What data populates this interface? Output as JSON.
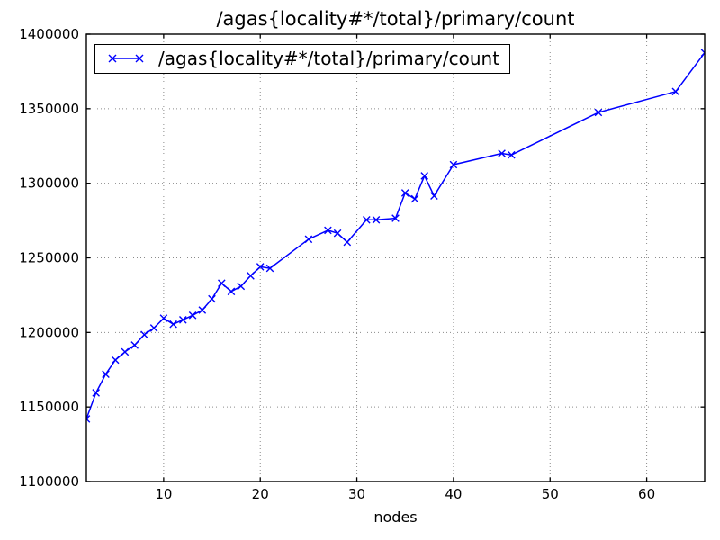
{
  "chart_data": {
    "type": "line",
    "title": "/agas{locality#*/total}/primary/count",
    "xlabel": "nodes",
    "ylabel": "",
    "grid": true,
    "grid_style": "dotted",
    "grid_color": "#8a8a8a",
    "legend_position": "upper left",
    "xlim": [
      2,
      66
    ],
    "ylim": [
      1100000,
      1400000
    ],
    "xticks": [
      10,
      20,
      30,
      40,
      50,
      60
    ],
    "yticks": [
      1100000,
      1150000,
      1200000,
      1250000,
      1300000,
      1350000,
      1400000
    ],
    "series": [
      {
        "name": "/agas{locality#*/total}/primary/count",
        "color": "#0000ff",
        "marker": "x",
        "x": [
          2,
          3,
          4,
          5,
          6,
          7,
          8,
          9,
          10,
          11,
          12,
          13,
          14,
          15,
          16,
          17,
          18,
          19,
          20,
          21,
          25,
          27,
          28,
          29,
          31,
          32,
          34,
          35,
          36,
          37,
          38,
          40,
          45,
          46,
          55,
          63,
          66
        ],
        "y": [
          1142000,
          1159500,
          1172000,
          1181500,
          1187000,
          1191500,
          1198500,
          1203000,
          1209500,
          1205500,
          1208500,
          1211500,
          1215000,
          1222500,
          1233000,
          1227500,
          1231000,
          1238000,
          1244000,
          1243000,
          1262500,
          1268500,
          1266500,
          1260500,
          1275500,
          1275500,
          1276500,
          1293500,
          1289500,
          1305000,
          1291500,
          1312500,
          1320000,
          1319000,
          1347500,
          1361500,
          1387500
        ]
      }
    ]
  },
  "colors": {
    "background": "#ffffff",
    "spine": "#000000",
    "text": "#000000",
    "line": "#0000ff",
    "grid": "#8a8a8a"
  }
}
